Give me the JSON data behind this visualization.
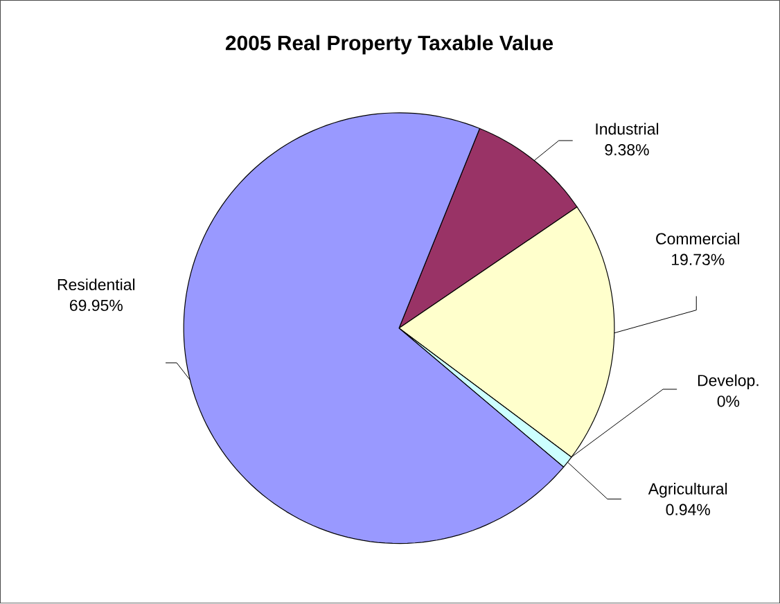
{
  "chart_data": {
    "type": "pie",
    "title": "2005 Real Property Taxable Value",
    "categories": [
      "Industrial",
      "Commercial",
      "Develop.",
      "Agricultural",
      "Residential"
    ],
    "values": [
      9.38,
      19.73,
      0,
      0.94,
      69.95
    ],
    "value_labels": [
      "9.38%",
      "19.73%",
      "0%",
      "0.94%",
      "69.95%"
    ],
    "colors": [
      "#993366",
      "#ffffcc",
      "#660066",
      "#ccffff",
      "#9999ff"
    ]
  }
}
